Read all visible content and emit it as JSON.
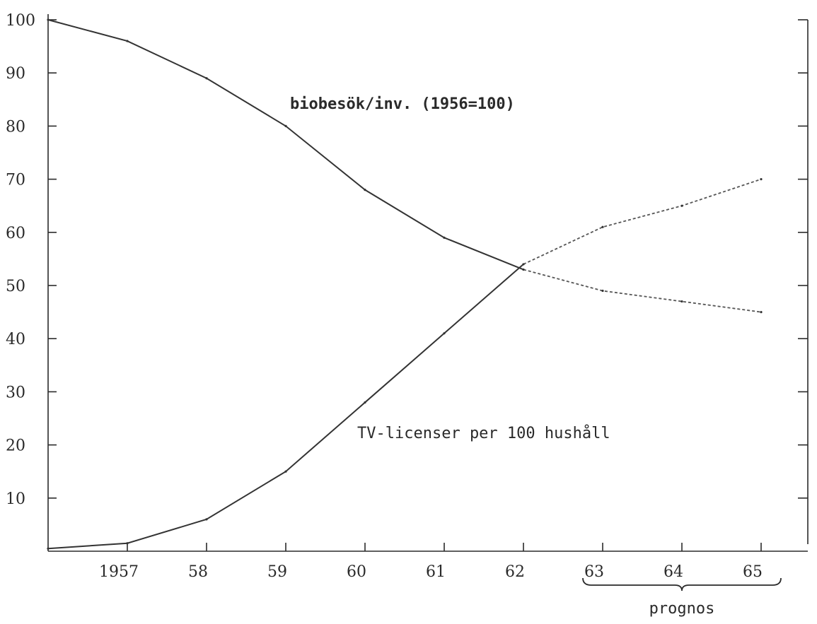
{
  "chart_data": {
    "type": "line",
    "title": "",
    "xlabel": "",
    "ylabel": "",
    "x": [
      1956,
      1957,
      1958,
      1959,
      1960,
      1961,
      1962,
      1963,
      1964,
      1965
    ],
    "x_tick_values": [
      1957,
      1958,
      1959,
      1960,
      1961,
      1962,
      1963,
      1964,
      1965
    ],
    "x_tick_labels": [
      "1957",
      "58",
      "59",
      "60",
      "61",
      "62",
      "63",
      "64",
      "65"
    ],
    "xlim": [
      1956,
      1965.3
    ],
    "y_tick_values": [
      10,
      20,
      30,
      40,
      50,
      60,
      70,
      80,
      90,
      100
    ],
    "y_tick_labels": [
      "10",
      "20",
      "30",
      "40",
      "50",
      "60",
      "70",
      "80",
      "90",
      "100"
    ],
    "ylim": [
      0,
      100
    ],
    "grid": false,
    "forecast_start": 1962,
    "series": [
      {
        "name": "biobesök/inv. (1956=100)",
        "style": "solid-then-dashed",
        "values": [
          100,
          96,
          89,
          80,
          68,
          59,
          53,
          49,
          47,
          45
        ]
      },
      {
        "name": "TV-licenser per 100 hushåll",
        "style": "solid-then-dashed",
        "values": [
          0.5,
          1.5,
          6,
          15,
          28,
          41,
          54,
          61,
          65,
          70
        ]
      }
    ],
    "annotations": [
      {
        "text": "prognos",
        "span": [
          1963,
          1965
        ]
      }
    ]
  }
}
